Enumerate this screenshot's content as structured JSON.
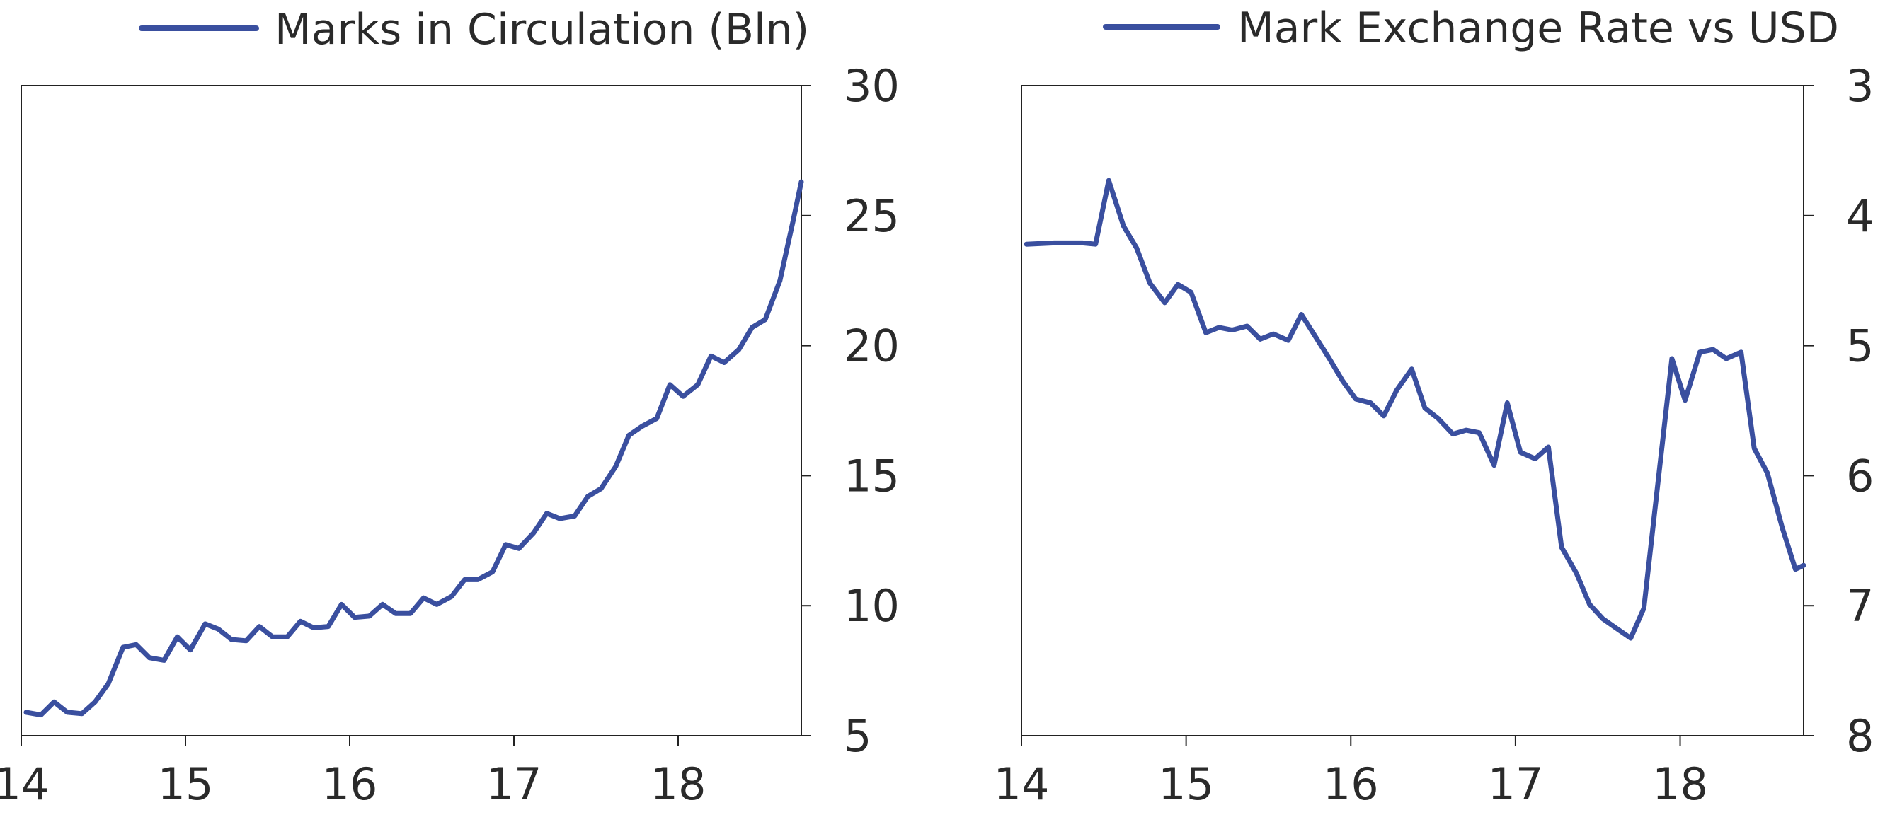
{
  "chart_data": [
    {
      "type": "line",
      "title": "",
      "xlabel": "",
      "ylabel": "",
      "xlim": [
        14,
        18.75
      ],
      "ylim": [
        5,
        30
      ],
      "y_axis_side": "right",
      "y_inverted": false,
      "grid": false,
      "legend_position": "top-center",
      "x_ticks": [
        14,
        15,
        16,
        17,
        18
      ],
      "x_tick_labels": [
        "14",
        "15",
        "16",
        "17",
        "18"
      ],
      "y_ticks": [
        5,
        10,
        15,
        20,
        25,
        30
      ],
      "y_tick_labels": [
        "5",
        "10",
        "15",
        "20",
        "25",
        "30"
      ],
      "series": [
        {
          "name": "Marks in Circulation (Bln)",
          "color": "#3a4f9f",
          "x": [
            14.03,
            14.12,
            14.2,
            14.28,
            14.37,
            14.45,
            14.53,
            14.62,
            14.7,
            14.78,
            14.87,
            14.95,
            15.03,
            15.12,
            15.2,
            15.28,
            15.37,
            15.45,
            15.53,
            15.62,
            15.7,
            15.78,
            15.87,
            15.95,
            16.03,
            16.12,
            16.2,
            16.28,
            16.37,
            16.45,
            16.53,
            16.62,
            16.7,
            16.78,
            16.87,
            16.95,
            17.03,
            17.12,
            17.2,
            17.28,
            17.37,
            17.45,
            17.53,
            17.62,
            17.7,
            17.78,
            17.87,
            17.95,
            18.03,
            18.12,
            18.2,
            18.28,
            18.37,
            18.45,
            18.53,
            18.62,
            18.7,
            18.75
          ],
          "values": [
            5.9,
            5.8,
            6.3,
            5.9,
            5.85,
            6.3,
            7.0,
            8.4,
            8.5,
            8.0,
            7.9,
            8.8,
            8.3,
            9.3,
            9.1,
            8.7,
            8.65,
            9.2,
            8.8,
            8.8,
            9.4,
            9.15,
            9.2,
            10.05,
            9.55,
            9.6,
            10.05,
            9.7,
            9.7,
            10.3,
            10.05,
            10.35,
            11.0,
            11.0,
            11.3,
            12.35,
            12.2,
            12.8,
            13.55,
            13.35,
            13.45,
            14.2,
            14.5,
            15.35,
            16.55,
            16.9,
            17.2,
            18.5,
            18.05,
            18.5,
            19.6,
            19.35,
            19.85,
            20.7,
            21.0,
            22.5,
            24.8,
            26.3
          ]
        }
      ]
    },
    {
      "type": "line",
      "title": "",
      "xlabel": "",
      "ylabel": "",
      "xlim": [
        14,
        18.75
      ],
      "ylim": [
        3,
        8
      ],
      "y_axis_side": "right",
      "y_inverted": true,
      "grid": false,
      "legend_position": "top-center",
      "x_ticks": [
        14,
        15,
        16,
        17,
        18
      ],
      "x_tick_labels": [
        "14",
        "15",
        "16",
        "17",
        "18"
      ],
      "y_ticks": [
        3,
        4,
        5,
        6,
        7,
        8
      ],
      "y_tick_labels": [
        "3",
        "4",
        "5",
        "6",
        "7",
        "8"
      ],
      "series": [
        {
          "name": "Mark Exchange Rate vs USD",
          "color": "#3a4f9f",
          "x": [
            14.03,
            14.2,
            14.37,
            14.45,
            14.53,
            14.62,
            14.7,
            14.78,
            14.87,
            14.95,
            15.03,
            15.12,
            15.2,
            15.28,
            15.37,
            15.45,
            15.53,
            15.62,
            15.7,
            15.78,
            15.87,
            15.95,
            16.03,
            16.12,
            16.2,
            16.28,
            16.37,
            16.45,
            16.53,
            16.62,
            16.7,
            16.78,
            16.87,
            16.95,
            17.03,
            17.12,
            17.2,
            17.28,
            17.37,
            17.45,
            17.53,
            17.62,
            17.7,
            17.78,
            17.87,
            17.95,
            18.03,
            18.12,
            18.2,
            18.28,
            18.37,
            18.45,
            18.53,
            18.62,
            18.7,
            18.75
          ],
          "values": [
            4.22,
            4.21,
            4.21,
            4.22,
            3.73,
            4.08,
            4.25,
            4.52,
            4.67,
            4.53,
            4.59,
            4.9,
            4.86,
            4.88,
            4.85,
            4.95,
            4.91,
            4.96,
            4.76,
            4.92,
            5.1,
            5.27,
            5.41,
            5.44,
            5.54,
            5.34,
            5.18,
            5.48,
            5.56,
            5.68,
            5.65,
            5.67,
            5.92,
            5.44,
            5.82,
            5.87,
            5.78,
            6.55,
            6.75,
            6.99,
            7.1,
            7.18,
            7.25,
            7.02,
            6.0,
            5.1,
            5.42,
            5.05,
            5.03,
            5.1,
            5.05,
            5.79,
            5.98,
            6.4,
            6.72,
            6.69
          ]
        }
      ]
    }
  ]
}
